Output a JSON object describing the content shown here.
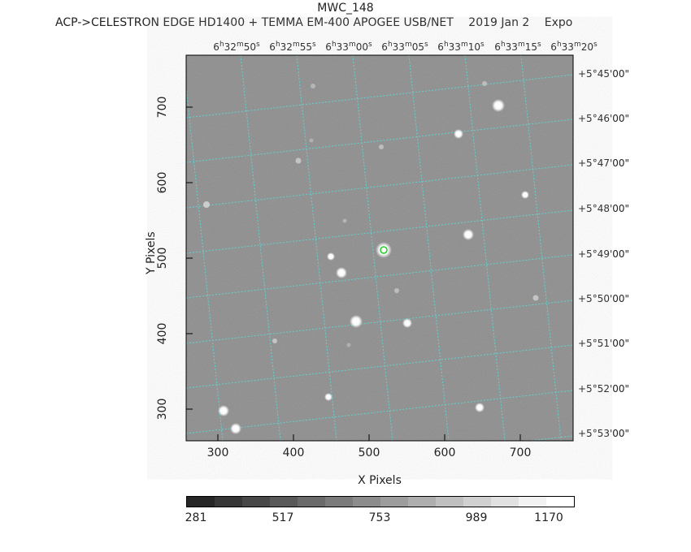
{
  "title": "MWC_148",
  "subtitle": [
    "ACP->CELESTRON EDGE HD1400 + TEMMA EM-400 APOGEE USB/NET",
    "2019 Jan  2",
    "Expo"
  ],
  "ra_labels": [
    "6h32m50s",
    "6h32m55s",
    "6h33m00s",
    "6h33m05s",
    "6h33m10s",
    "6h33m15s",
    "6h33m20s"
  ],
  "dec_labels": [
    "+5°45'00\"",
    "+5°46'00\"",
    "+5°47'00\"",
    "+5°48'00\"",
    "+5°49'00\"",
    "+5°50'00\"",
    "+5°51'00\"",
    "+5°52'00\"",
    "+5°53'00\""
  ],
  "x_ticks": [
    "300",
    "400",
    "500",
    "600",
    "700"
  ],
  "y_ticks": [
    "300",
    "400",
    "500",
    "600",
    "700"
  ],
  "x_axis_label": "X Pixels",
  "y_axis_label": "Y Pixels",
  "colorbar_ticks": [
    "281",
    "517",
    "753",
    "989",
    "1170"
  ],
  "colors": {
    "grid": "#5fd3d3",
    "background_sky": "#8d8d8d",
    "marker": "#22cc22"
  }
}
